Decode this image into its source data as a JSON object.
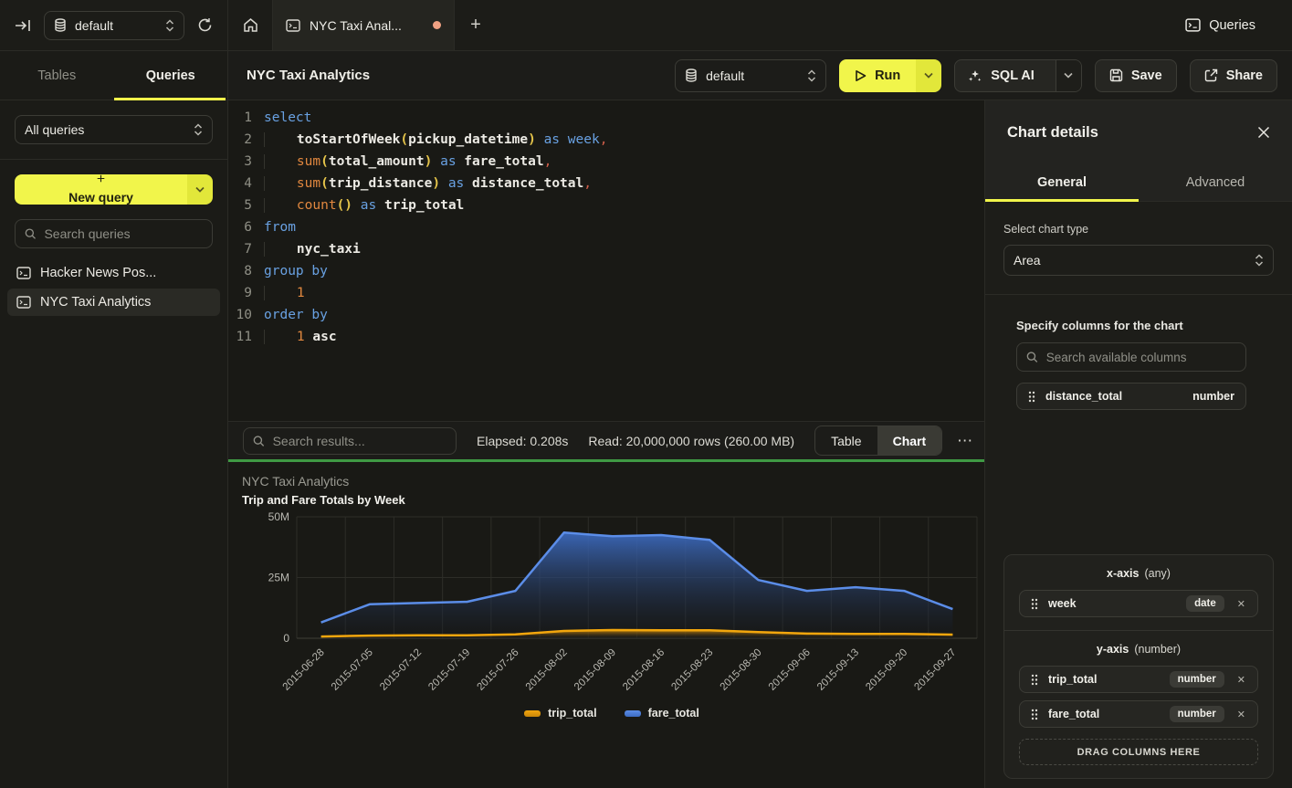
{
  "colors": {
    "accent_yellow": "#f1f54b",
    "accent_yellow_dark": "#e2e73a",
    "resize_green": "#3f9a44",
    "series_blue": "#5b8de8",
    "series_orange": "#f2a60d",
    "unsaved_dot": "#f0a183"
  },
  "icons": {
    "plus": "+",
    "more": "⋯",
    "remove": "✕"
  },
  "topbar": {
    "database_selector": {
      "value": "default"
    },
    "tab_title": "NYC Taxi Anal...",
    "queries_label": "Queries"
  },
  "sidebar": {
    "tabs": [
      {
        "label": "Tables",
        "active": false
      },
      {
        "label": "Queries",
        "active": true
      }
    ],
    "filter_value": "All queries",
    "new_query_label": "New query",
    "search_placeholder": "Search queries",
    "items": [
      {
        "label": "Hacker News Pos...",
        "selected": false
      },
      {
        "label": "NYC Taxi Analytics",
        "selected": true
      }
    ]
  },
  "header": {
    "title": "NYC Taxi Analytics",
    "database_selector": {
      "value": "default"
    },
    "run_label": "Run",
    "sql_ai_label": "SQL AI",
    "save_label": "Save",
    "share_label": "Share"
  },
  "editor": {
    "lines": [
      {
        "n": "1",
        "ind": 0,
        "tok": [
          [
            "kw",
            "select"
          ]
        ]
      },
      {
        "n": "2",
        "ind": 1,
        "tok": [
          [
            "id",
            "toStartOfWeek"
          ],
          [
            "pr",
            "("
          ],
          [
            "id",
            "pickup_datetime"
          ],
          [
            "pr",
            ")"
          ],
          [
            "sp",
            " "
          ],
          [
            "kw",
            "as"
          ],
          [
            "sp",
            " "
          ],
          [
            "kw",
            "week"
          ],
          [
            "pu",
            ","
          ]
        ]
      },
      {
        "n": "3",
        "ind": 1,
        "tok": [
          [
            "fn",
            "sum"
          ],
          [
            "pr",
            "("
          ],
          [
            "id",
            "total_amount"
          ],
          [
            "pr",
            ")"
          ],
          [
            "sp",
            " "
          ],
          [
            "kw",
            "as"
          ],
          [
            "sp",
            " "
          ],
          [
            "id",
            "fare_total"
          ],
          [
            "pu",
            ","
          ]
        ]
      },
      {
        "n": "4",
        "ind": 1,
        "tok": [
          [
            "fn",
            "sum"
          ],
          [
            "pr",
            "("
          ],
          [
            "id",
            "trip_distance"
          ],
          [
            "pr",
            ")"
          ],
          [
            "sp",
            " "
          ],
          [
            "kw",
            "as"
          ],
          [
            "sp",
            " "
          ],
          [
            "id",
            "distance_total"
          ],
          [
            "pu",
            ","
          ]
        ]
      },
      {
        "n": "5",
        "ind": 1,
        "tok": [
          [
            "fn",
            "count"
          ],
          [
            "pr",
            "()"
          ],
          [
            "sp",
            " "
          ],
          [
            "kw",
            "as"
          ],
          [
            "sp",
            " "
          ],
          [
            "id",
            "trip_total"
          ]
        ]
      },
      {
        "n": "6",
        "ind": 0,
        "tok": [
          [
            "kw",
            "from"
          ]
        ]
      },
      {
        "n": "7",
        "ind": 1,
        "tok": [
          [
            "id",
            "nyc_taxi"
          ]
        ]
      },
      {
        "n": "8",
        "ind": 0,
        "tok": [
          [
            "kw",
            "group by"
          ]
        ]
      },
      {
        "n": "9",
        "ind": 1,
        "tok": [
          [
            "num",
            "1"
          ]
        ]
      },
      {
        "n": "10",
        "ind": 0,
        "tok": [
          [
            "kw",
            "order by"
          ]
        ]
      },
      {
        "n": "11",
        "ind": 1,
        "tok": [
          [
            "num",
            "1"
          ],
          [
            "sp",
            " "
          ],
          [
            "id",
            "asc"
          ]
        ]
      }
    ]
  },
  "results": {
    "search_placeholder": "Search results...",
    "elapsed": "Elapsed: 0.208s",
    "read": "Read: 20,000,000 rows (260.00 MB)",
    "view_toggle": [
      {
        "label": "Table",
        "active": false
      },
      {
        "label": "Chart",
        "active": true
      }
    ]
  },
  "chart_data": {
    "type": "area",
    "title": "NYC Taxi Analytics",
    "subtitle": "Trip and Fare Totals by Week",
    "xlabel": "",
    "ylabel": "",
    "unit": "millions",
    "ylim": [
      0,
      50
    ],
    "yticks": [
      {
        "v": 0,
        "label": "0"
      },
      {
        "v": 25,
        "label": "25M"
      },
      {
        "v": 50,
        "label": "50M"
      }
    ],
    "grid": true,
    "legend_position": "bottom",
    "categories": [
      "2015-06-28",
      "2015-07-05",
      "2015-07-12",
      "2015-07-19",
      "2015-07-26",
      "2015-08-02",
      "2015-08-09",
      "2015-08-16",
      "2015-08-23",
      "2015-08-30",
      "2015-09-06",
      "2015-09-13",
      "2015-09-20",
      "2015-09-27"
    ],
    "series": [
      {
        "name": "fare_total",
        "color": "#5b8de8",
        "fill_top": "#3d6cc2",
        "values": [
          6.5,
          14,
          14.5,
          15,
          19.5,
          43.5,
          42,
          42.5,
          40.5,
          24,
          19.5,
          21,
          19.5,
          12
        ]
      },
      {
        "name": "trip_total",
        "color": "#f2a60d",
        "fill_top": "#c8860a",
        "values": [
          0.7,
          1.1,
          1.2,
          1.2,
          1.6,
          3.0,
          3.4,
          3.3,
          3.3,
          2.5,
          1.9,
          1.8,
          1.8,
          1.5
        ]
      }
    ],
    "legend_order": [
      "trip_total",
      "fare_total"
    ]
  },
  "details_panel": {
    "title": "Chart details",
    "tabs": [
      {
        "label": "General",
        "active": true
      },
      {
        "label": "Advanced",
        "active": false
      }
    ],
    "chart_type_label": "Select chart type",
    "chart_type_value": "Area",
    "columns_label": "Specify columns for the chart",
    "search_placeholder": "Search available columns",
    "available_columns": [
      {
        "name": "distance_total",
        "type": "number"
      }
    ],
    "axes": [
      {
        "title": "x-axis",
        "hint": "(any)",
        "items": [
          {
            "name": "week",
            "badge": "date"
          }
        ]
      },
      {
        "title": "y-axis",
        "hint": "(number)",
        "items": [
          {
            "name": "trip_total",
            "badge": "number"
          },
          {
            "name": "fare_total",
            "badge": "number"
          }
        ]
      }
    ],
    "drop_label": "DRAG COLUMNS HERE"
  }
}
